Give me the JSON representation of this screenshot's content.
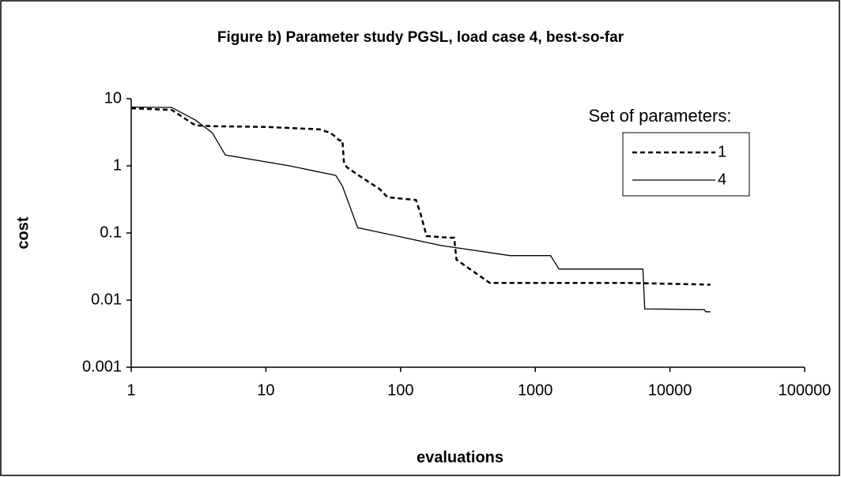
{
  "chart_data": {
    "type": "line",
    "title": "Figure b) Parameter study PGSL, load case 4, best-so-far",
    "x_label": "evaluations",
    "y_label": "cost",
    "legend_title": "Set of parameters:",
    "x_log": true,
    "y_log": true,
    "xlim": [
      1,
      100000
    ],
    "ylim": [
      0.001,
      10
    ],
    "xticks": [
      1,
      10,
      100,
      1000,
      10000,
      100000
    ],
    "yticks": [
      0.001,
      0.01,
      0.1,
      1,
      10
    ],
    "grid": false,
    "series": [
      {
        "name": "1",
        "color": "#000000",
        "dash": true,
        "x": [
          1,
          2,
          3,
          4,
          10,
          25,
          30,
          33,
          35,
          37,
          38,
          40,
          50,
          70,
          80,
          130,
          140,
          156,
          230,
          250,
          260,
          460,
          1000,
          5000,
          20000
        ],
        "values": [
          7.2,
          6.8,
          4.0,
          3.9,
          3.8,
          3.5,
          3.1,
          2.7,
          2.4,
          2.4,
          1.1,
          0.95,
          0.7,
          0.45,
          0.34,
          0.31,
          0.2,
          0.09,
          0.085,
          0.085,
          0.04,
          0.018,
          0.018,
          0.018,
          0.017
        ]
      },
      {
        "name": "4",
        "color": "#000000",
        "dash": false,
        "x": [
          1,
          2,
          3,
          4,
          5,
          15,
          33,
          37,
          48,
          200,
          650,
          1300,
          1500,
          6300,
          6500,
          18000,
          18500,
          20000
        ],
        "values": [
          7.5,
          7.4,
          4.8,
          3.1,
          1.45,
          1.0,
          0.72,
          0.5,
          0.12,
          0.065,
          0.046,
          0.046,
          0.029,
          0.029,
          0.0074,
          0.0072,
          0.0067,
          0.0067
        ]
      }
    ]
  }
}
